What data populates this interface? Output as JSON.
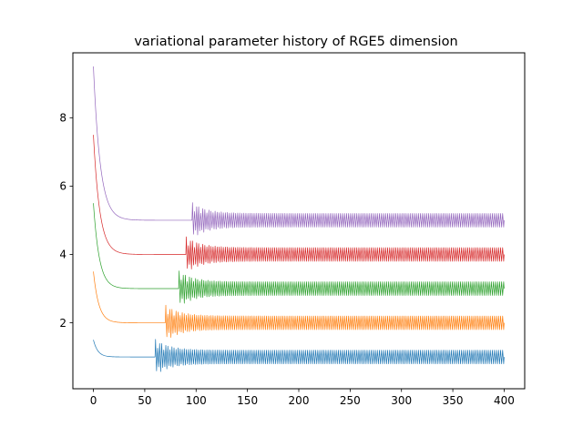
{
  "chart_data": {
    "type": "line",
    "title": "variational parameter history of RGE5 dimension",
    "xlabel": "",
    "ylabel": "",
    "xlim": [
      -20,
      420
    ],
    "ylim": [
      0.07,
      9.9
    ],
    "x_ticks": [
      0,
      50,
      100,
      150,
      200,
      250,
      300,
      350,
      400
    ],
    "y_ticks": [
      2,
      4,
      6,
      8
    ],
    "x_tick_labels": [
      "0",
      "50",
      "100",
      "150",
      "200",
      "250",
      "300",
      "350",
      "400"
    ],
    "y_tick_labels": [
      "2",
      "4",
      "6",
      "8"
    ],
    "grid": false,
    "legend": "none",
    "series": [
      {
        "color": "#1f77b4",
        "start": 1.5,
        "plateau": 1.0,
        "decay_until": 18,
        "burst_start": 60,
        "oscillation_low": 0.8,
        "oscillation_high": 1.2,
        "x_end": 400
      },
      {
        "color": "#ff7f0e",
        "start": 3.5,
        "plateau": 2.0,
        "decay_until": 22,
        "burst_start": 70,
        "oscillation_low": 1.8,
        "oscillation_high": 2.2,
        "x_end": 400
      },
      {
        "color": "#2ca02c",
        "start": 5.5,
        "plateau": 3.0,
        "decay_until": 24,
        "burst_start": 83,
        "oscillation_low": 2.8,
        "oscillation_high": 3.2,
        "x_end": 400
      },
      {
        "color": "#d62728",
        "start": 7.5,
        "plateau": 4.0,
        "decay_until": 26,
        "burst_start": 90,
        "oscillation_low": 3.8,
        "oscillation_high": 4.2,
        "x_end": 400
      },
      {
        "color": "#9467bd",
        "start": 9.5,
        "plateau": 5.0,
        "decay_until": 28,
        "burst_start": 96,
        "oscillation_low": 4.8,
        "oscillation_high": 5.2,
        "x_end": 400
      }
    ]
  }
}
